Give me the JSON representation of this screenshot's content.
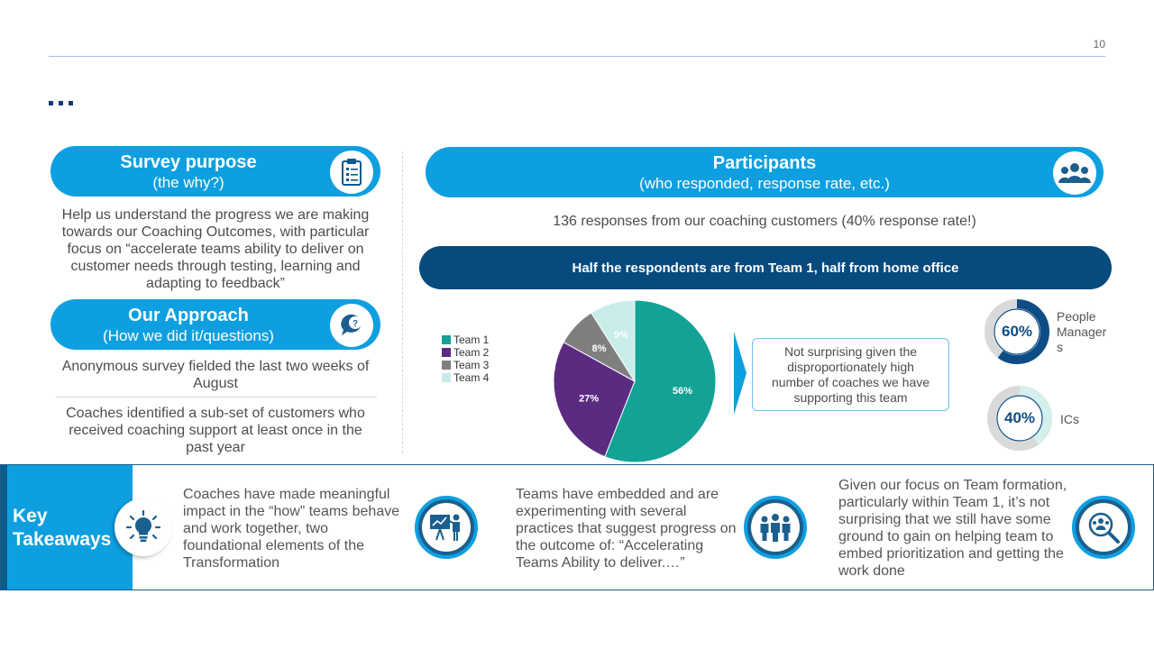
{
  "page_number": "10",
  "purpose": {
    "title": "Survey purpose",
    "subtitle": "(the why?)",
    "icon": "clipboard-icon",
    "body": "Help us understand the progress we are making towards our Coaching Outcomes, with particular focus on “accelerate teams ability to deliver on customer needs through testing, learning and adapting to feedback”"
  },
  "approach": {
    "title": "Our Approach",
    "subtitle": "(How we did it/questions)",
    "icon": "question-speech-icon",
    "body1": "Anonymous survey fielded the last two weeks of August",
    "body2": "Coaches identified a sub-set of customers who received coaching support at least once in the past year"
  },
  "participants": {
    "title": "Participants",
    "subtitle": "(who responded, response rate, etc.)",
    "icon": "people-group-icon",
    "summary": "136 responses from our coaching customers (40% response rate!)",
    "banner": "Half the respondents are from Team 1, half from home office",
    "callout": "Not surprising given the disproportionately high number of coaches we have supporting this team"
  },
  "chart_data": {
    "type": "pie",
    "categories": [
      "Team 1",
      "Team 2",
      "Team 3",
      "Team 4"
    ],
    "values": [
      56,
      27,
      8,
      9
    ],
    "labels": [
      "56%",
      "27%",
      "8%",
      "9%"
    ],
    "colors": [
      "#12a296",
      "#5b2b82",
      "#7f7f7f",
      "#c8ece9"
    ],
    "legend_position": "left"
  },
  "donuts": [
    {
      "value": 60,
      "label": "60%",
      "caption_lines": [
        "People",
        "Manager",
        "s"
      ],
      "fill": "#0d4d86",
      "track": "#d9d9d9"
    },
    {
      "value": 40,
      "label": "40%",
      "caption_lines": [
        "ICs"
      ],
      "fill": "#d4efec",
      "track": "#d9d9d9"
    }
  ],
  "takeaways": {
    "title_line1": "Key",
    "title_line2": "Takeaways",
    "items": [
      {
        "text": "Coaches have made meaningful impact in the “how” teams behave and work together, two foundational elements of the Transformation",
        "icon": "presentation-board-icon"
      },
      {
        "text": "Teams have embedded and are experimenting with several practices that suggest progress on the outcome of: “Accelerating Teams Ability to deliver.…”",
        "icon": "team-icon"
      },
      {
        "text": "Given our focus on Team formation, particularly within Team 1, it’s not surprising that we still have some ground to gain on helping team to embed prioritization and getting the work done",
        "icon": "search-people-icon"
      }
    ],
    "lead_icon": "lightbulb-icon"
  }
}
